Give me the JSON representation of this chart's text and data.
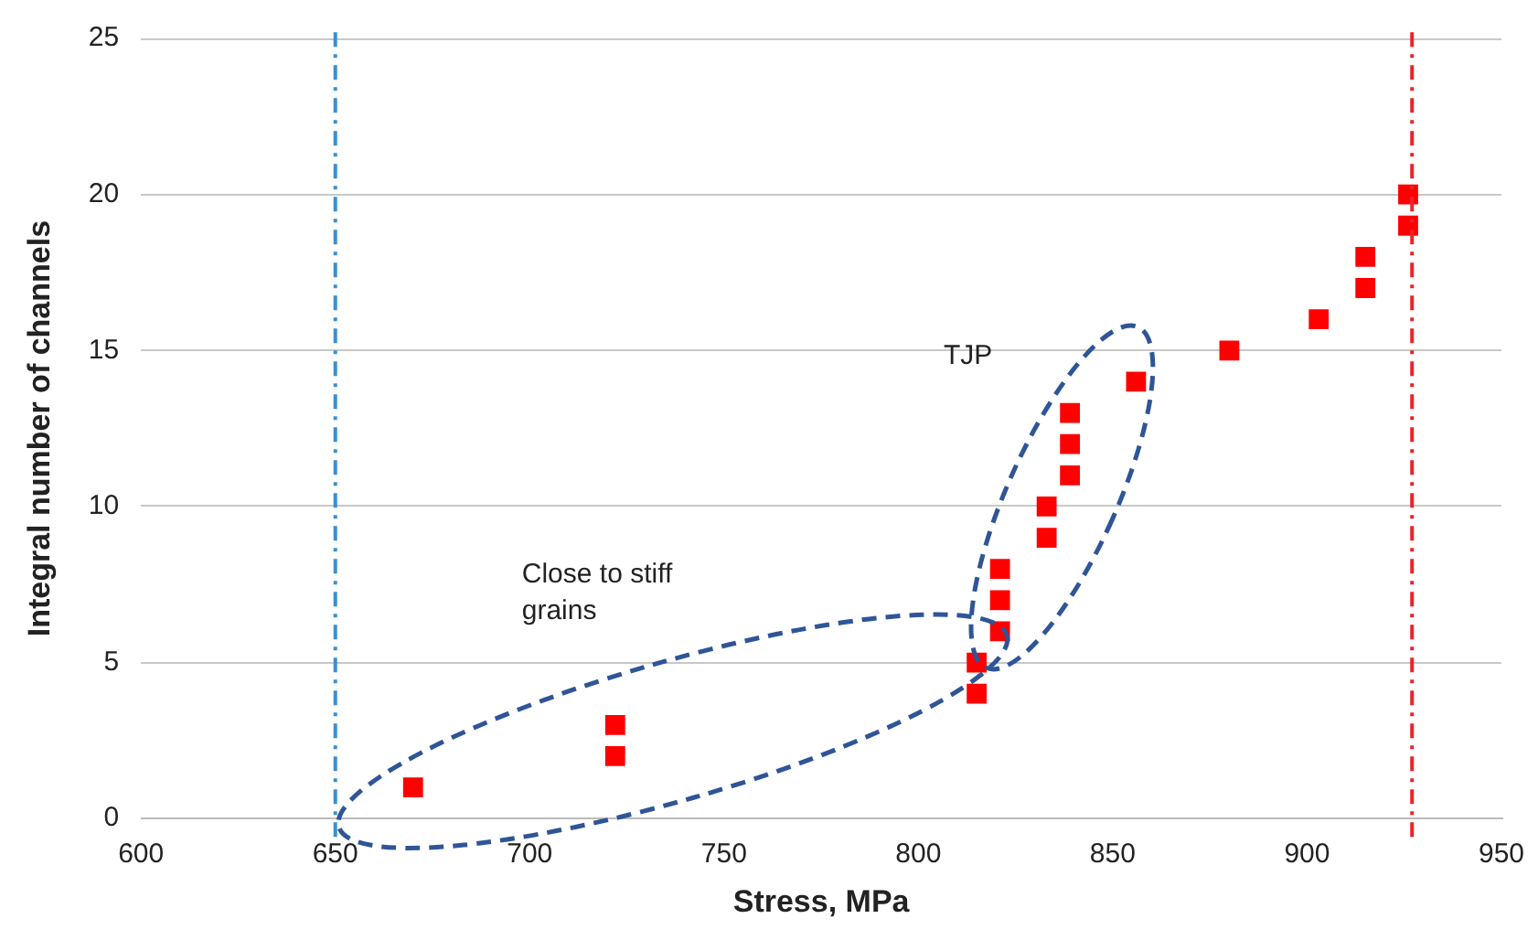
{
  "chart_data": {
    "type": "scatter",
    "xlabel": "Stress, MPa",
    "ylabel": "Integral number of channels",
    "marker": "square",
    "grid": "y",
    "legend": false,
    "xlim": [
      600,
      950
    ],
    "xticks": [
      600,
      650,
      700,
      750,
      800,
      850,
      900,
      950
    ],
    "ylim": [
      0,
      25
    ],
    "yticks": [
      0,
      5,
      10,
      15,
      20,
      25
    ],
    "series": [
      {
        "color": "#ff0000",
        "x": [
          670,
          722,
          722,
          815,
          815,
          833,
          839,
          839,
          880,
          903,
          915,
          915,
          926,
          926
        ],
        "values": [
          1,
          2,
          3,
          4,
          5,
          10,
          11,
          13,
          15,
          16,
          17,
          18,
          19,
          20
        ]
      },
      {
        "color": "#ff0000",
        "x": [
          821,
          821,
          821,
          833,
          839,
          856
        ],
        "values": [
          6,
          7,
          8,
          9,
          12,
          14
        ]
      }
    ],
    "ref_lines": [
      {
        "axis": "x",
        "value": 650,
        "color": "#3b8fd0",
        "line_style": "dashdot"
      },
      {
        "axis": "x",
        "value": 927,
        "color": "#e8242a",
        "line_style": "dashdot"
      }
    ],
    "annotations": [
      "TJP",
      "Close to stiff grains"
    ]
  }
}
